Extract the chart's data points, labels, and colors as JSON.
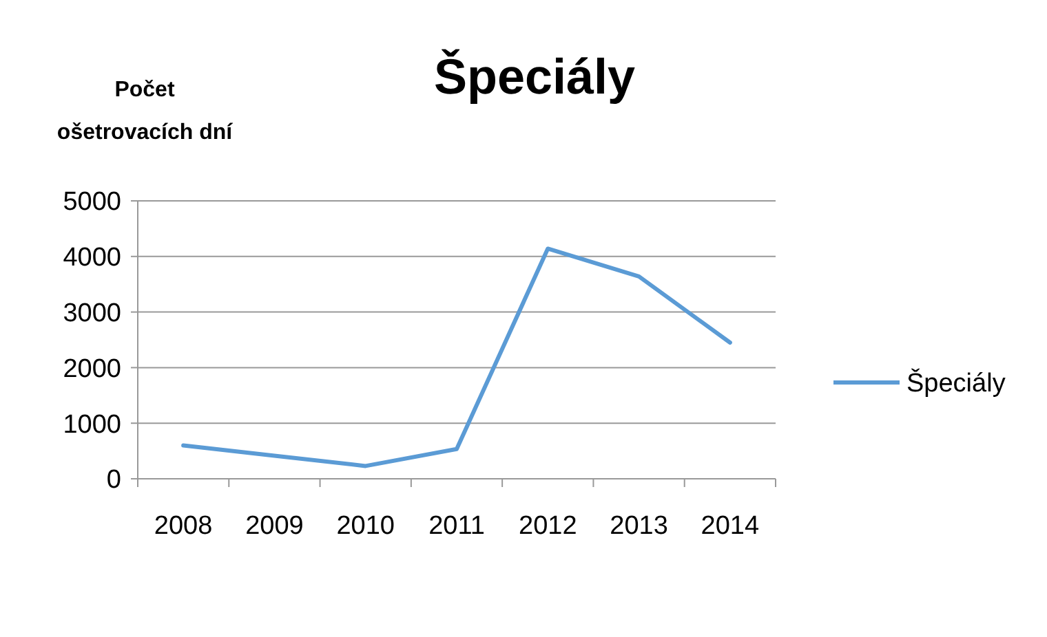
{
  "chart_data": {
    "type": "line",
    "title": "Špeciály",
    "ylabel": "Počet ošetrovacích dní",
    "categories": [
      "2008",
      "2009",
      "2010",
      "2011",
      "2012",
      "2013",
      "2014"
    ],
    "series": [
      {
        "name": "Špeciály",
        "color": "#5b9bd5",
        "values": [
          600,
          415,
          230,
          535,
          4140,
          3640,
          2450
        ]
      }
    ],
    "ylim": [
      0,
      5000
    ],
    "yticks": [
      0,
      1000,
      2000,
      3000,
      4000,
      5000
    ],
    "grid": "y",
    "legend": "right",
    "marker": "none",
    "line_style": "solid"
  }
}
